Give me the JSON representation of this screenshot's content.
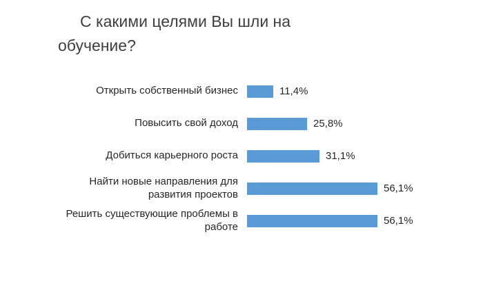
{
  "title": "С какими целями Вы шли на обучение?",
  "colors": {
    "background": "#ffffff",
    "bar": "#5b9bd5",
    "title_text": "#3f3f3f",
    "label_text": "#262626"
  },
  "chart_data": {
    "type": "bar",
    "orientation": "horizontal",
    "title": "С какими целями Вы шли на обучение?",
    "categories": [
      "Открыть собственный бизнес",
      "Повысить свой доход",
      "Добиться карьерного роста",
      "Найти новые направления для развития проектов",
      "Решить существующие проблемы в работе"
    ],
    "values": [
      11.4,
      25.8,
      31.1,
      56.1,
      56.1
    ],
    "value_labels": [
      "11,4%",
      "25,8%",
      "31,1%",
      "56,1%",
      "56,1%"
    ],
    "bar_color": "#5b9bd5",
    "value_format": "percent-comma-decimal",
    "xlim": [
      0,
      60
    ],
    "grid": false,
    "legend": false,
    "data_labels_position": "end-of-bar"
  }
}
